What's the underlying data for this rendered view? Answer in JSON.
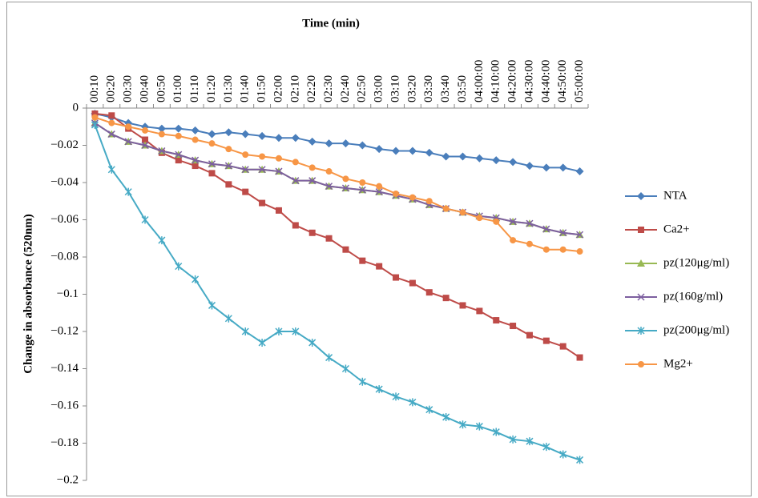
{
  "chart_data": {
    "type": "line",
    "x_label": "Time (min)",
    "y_label": "Change in absorbance (520nm)",
    "categories": [
      "00:10",
      "00:20",
      "00:30",
      "00:40",
      "00:50",
      "01:00",
      "01:10",
      "01:20",
      "01:30",
      "01:40",
      "01:50",
      "02:00",
      "02:10",
      "02:20",
      "02:30",
      "02:40",
      "02:50",
      "03:00",
      "03:10",
      "03:20",
      "03:30",
      "03:40",
      "03:50",
      "04:00:00",
      "04:10:00",
      "04:20:00",
      "04:30:00",
      "04:40:00",
      "04:50:00",
      "05:00:00"
    ],
    "series": [
      {
        "name": "NTA",
        "color": "#4a7ebb",
        "marker": "diamond",
        "values": [
          -0.003,
          -0.005,
          -0.008,
          -0.01,
          -0.011,
          -0.011,
          -0.012,
          -0.014,
          -0.013,
          -0.014,
          -0.015,
          -0.016,
          -0.016,
          -0.018,
          -0.019,
          -0.019,
          -0.02,
          -0.022,
          -0.023,
          -0.023,
          -0.024,
          -0.026,
          -0.026,
          -0.027,
          -0.028,
          -0.029,
          -0.031,
          -0.032,
          -0.032,
          -0.034
        ]
      },
      {
        "name": "Ca2+",
        "color": "#be4b48",
        "marker": "square",
        "values": [
          -0.003,
          -0.004,
          -0.011,
          -0.017,
          -0.024,
          -0.028,
          -0.031,
          -0.035,
          -0.041,
          -0.045,
          -0.051,
          -0.055,
          -0.063,
          -0.067,
          -0.07,
          -0.076,
          -0.082,
          -0.085,
          -0.091,
          -0.094,
          -0.099,
          -0.102,
          -0.106,
          -0.109,
          -0.114,
          -0.117,
          -0.122,
          -0.125,
          -0.128,
          -0.134
        ]
      },
      {
        "name": "pz(120μg/ml)",
        "color": "#98b954",
        "marker": "triangle",
        "values": [
          -0.008,
          -0.014,
          -0.018,
          -0.02,
          -0.023,
          -0.025,
          -0.028,
          -0.03,
          -0.031,
          -0.033,
          -0.033,
          -0.034,
          -0.039,
          -0.039,
          -0.042,
          -0.043,
          -0.044,
          -0.045,
          -0.047,
          -0.049,
          -0.052,
          -0.054,
          -0.056,
          -0.058,
          -0.059,
          -0.061,
          -0.062,
          -0.065,
          -0.067,
          -0.068
        ]
      },
      {
        "name": "pz(160g/ml)",
        "color": "#7d5fa0",
        "marker": "x",
        "values": [
          -0.008,
          -0.014,
          -0.018,
          -0.02,
          -0.023,
          -0.025,
          -0.028,
          -0.03,
          -0.031,
          -0.033,
          -0.033,
          -0.034,
          -0.039,
          -0.039,
          -0.042,
          -0.043,
          -0.044,
          -0.045,
          -0.047,
          -0.049,
          -0.052,
          -0.054,
          -0.056,
          -0.058,
          -0.059,
          -0.061,
          -0.062,
          -0.065,
          -0.067,
          -0.068
        ]
      },
      {
        "name": "pz(200μg/ml)",
        "color": "#46aac5",
        "marker": "star",
        "values": [
          -0.009,
          -0.033,
          -0.045,
          -0.06,
          -0.071,
          -0.085,
          -0.092,
          -0.106,
          -0.113,
          -0.12,
          -0.126,
          -0.12,
          -0.12,
          -0.126,
          -0.134,
          -0.14,
          -0.147,
          -0.151,
          -0.155,
          -0.158,
          -0.162,
          -0.166,
          -0.17,
          -0.171,
          -0.174,
          -0.178,
          -0.179,
          -0.182,
          -0.186,
          -0.189
        ]
      },
      {
        "name": "Mg2+",
        "color": "#f79646",
        "marker": "circle",
        "values": [
          -0.005,
          -0.008,
          -0.01,
          -0.012,
          -0.014,
          -0.015,
          -0.017,
          -0.019,
          -0.022,
          -0.025,
          -0.026,
          -0.027,
          -0.029,
          -0.032,
          -0.034,
          -0.038,
          -0.04,
          -0.042,
          -0.046,
          -0.048,
          -0.05,
          -0.054,
          -0.056,
          -0.059,
          -0.061,
          -0.071,
          -0.073,
          -0.076,
          -0.076,
          -0.077
        ]
      }
    ],
    "ylim": [
      -0.2,
      0
    ],
    "yticks": [
      0,
      {
        "value": -0.02,
        "label": "−0.02"
      },
      {
        "value": -0.04,
        "label": "−0.04"
      },
      {
        "value": -0.06,
        "label": "−0.06"
      },
      {
        "value": -0.08,
        "label": "−0.08"
      },
      {
        "value": -0.1,
        "label": "−0.1"
      },
      {
        "value": -0.12,
        "label": "−0.12"
      },
      {
        "value": -0.14,
        "label": "−0.14"
      },
      {
        "value": -0.16,
        "label": "−0.16"
      },
      {
        "value": -0.18,
        "label": "−0.18"
      },
      {
        "value": -0.2,
        "label": "−0.2"
      }
    ],
    "legend": "right"
  }
}
